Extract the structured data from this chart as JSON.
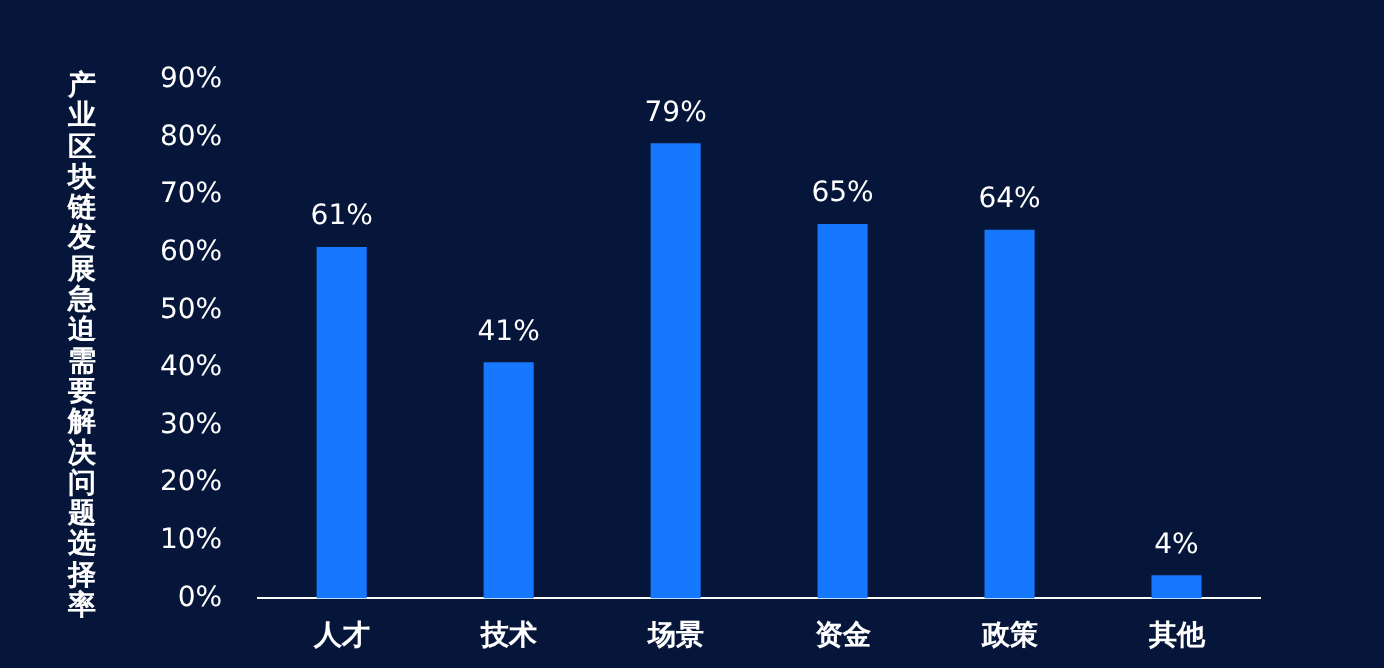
{
  "chart_data": {
    "type": "bar",
    "ylabel": "产业区块链发展急迫需要解决问题选择率",
    "categories": [
      "人才",
      "技术",
      "场景",
      "资金",
      "政策",
      "其他"
    ],
    "values": [
      61,
      41,
      79,
      65,
      64,
      4
    ],
    "color": "#1677ff",
    "ylim": [
      0,
      90
    ],
    "yticks": [
      {
        "value": 0,
        "label": "0%"
      },
      {
        "value": 10,
        "label": "10%"
      },
      {
        "value": 20,
        "label": "20%"
      },
      {
        "value": 30,
        "label": "30%"
      },
      {
        "value": 40,
        "label": "40%"
      },
      {
        "value": 50,
        "label": "50%"
      },
      {
        "value": 60,
        "label": "60%"
      },
      {
        "value": 70,
        "label": "70%"
      },
      {
        "value": 80,
        "label": "80%"
      },
      {
        "value": 90,
        "label": "90%"
      }
    ],
    "value_labels": [
      "61%",
      "41%",
      "79%",
      "65%",
      "64%",
      "4%"
    ],
    "grid": false,
    "legend": false
  }
}
